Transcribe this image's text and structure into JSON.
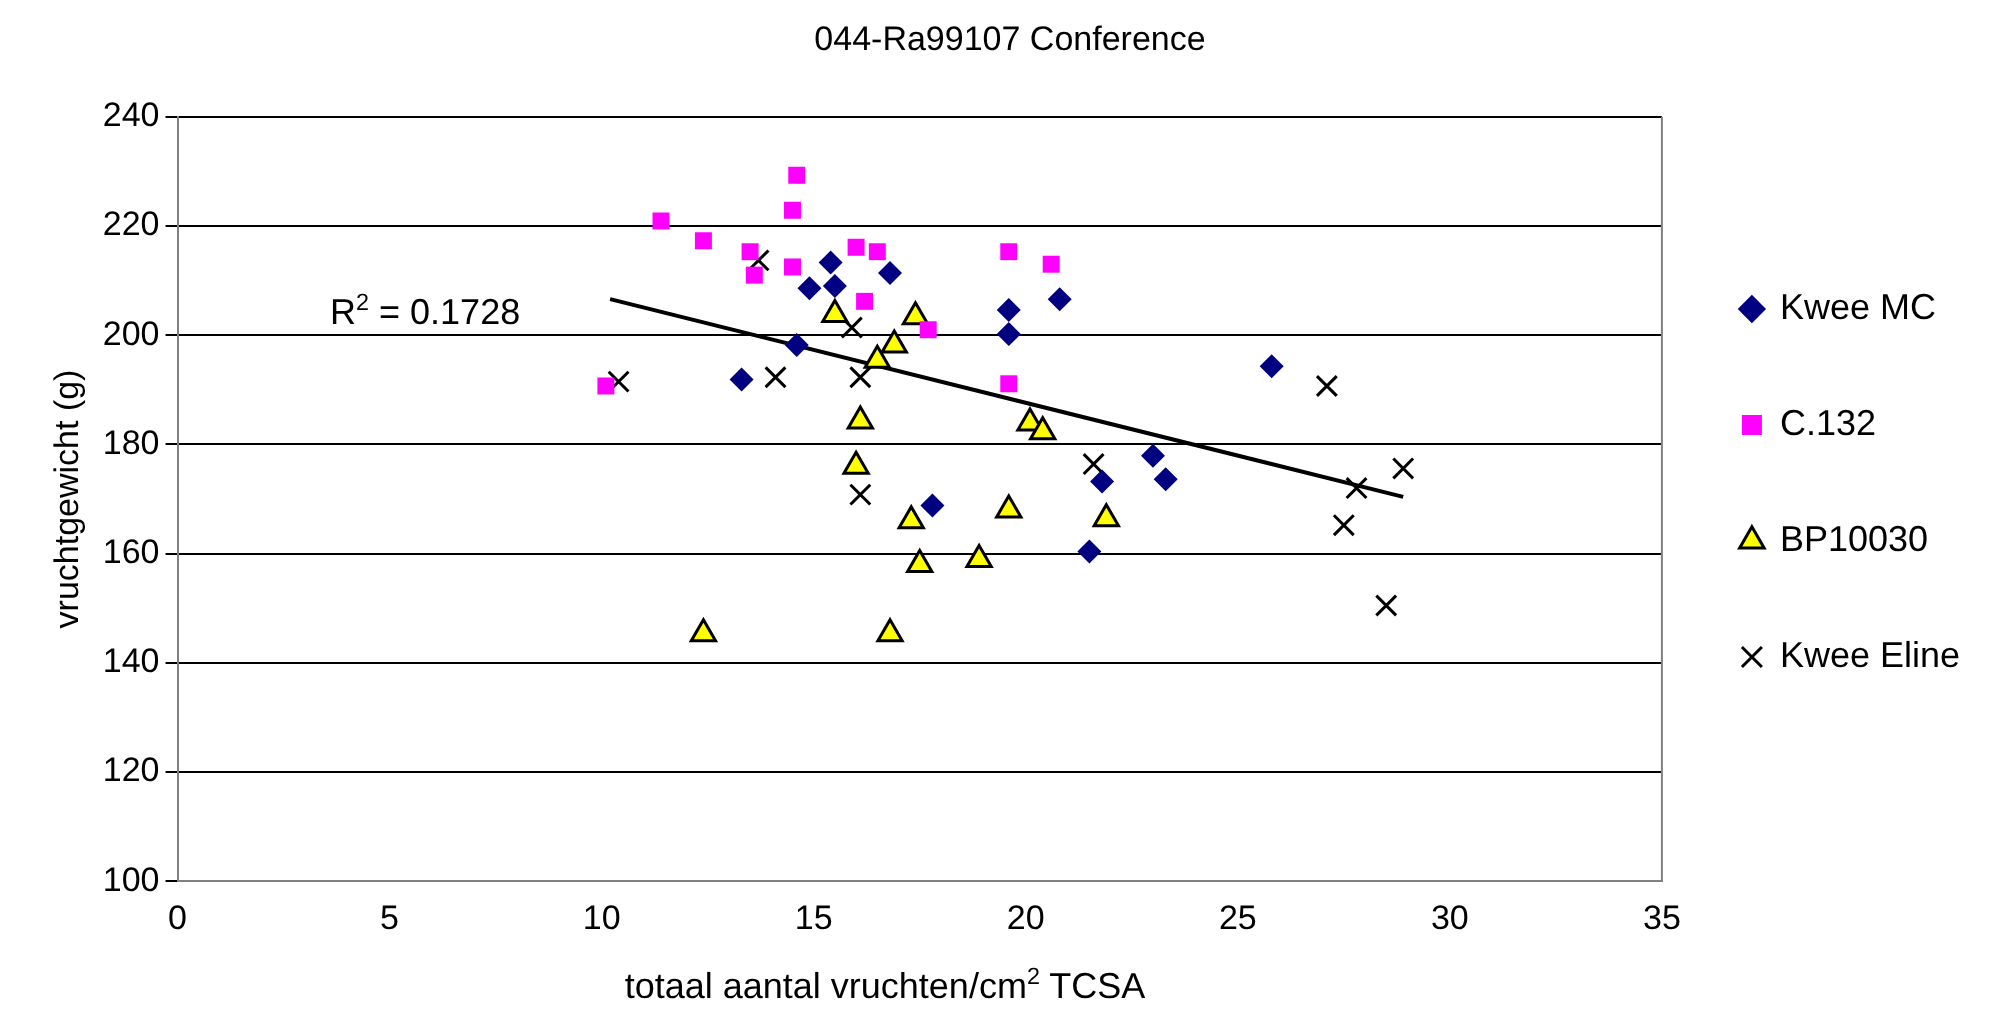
{
  "chart_data": {
    "type": "scatter",
    "title": "044-Ra99107 Conference",
    "xlabel": "totaal aantal vruchten/cm$^{2}$ TCSA",
    "ylabel": "vruchtgewicht (g)",
    "xlim": [
      0,
      35
    ],
    "xticks": [
      0,
      5,
      10,
      15,
      20,
      25,
      30,
      35
    ],
    "ylim": [
      100,
      240
    ],
    "yticks": [
      100,
      120,
      140,
      160,
      180,
      200,
      220,
      240
    ],
    "grid": "y",
    "legend": "right",
    "annotations": [
      "R$^{2}$ = 0.1728"
    ],
    "series": [
      {
        "name": "Kwee MC",
        "color": "#000080",
        "marker": "diamond",
        "x": [
          13.3,
          14.6,
          14.9,
          15.4,
          15.5,
          16.8,
          19.6,
          19.6,
          20.8,
          17.8,
          21.8,
          21.5,
          23.0,
          23.3,
          25.8
        ],
        "values": [
          191.9,
          198.2,
          208.6,
          213.3,
          209,
          211.4,
          204.6,
          200.2,
          206.6,
          168.8,
          173.2,
          160.4,
          177.9,
          173.6,
          194.3
        ]
      },
      {
        "name": "C.132",
        "color": "#ff00ff",
        "marker": "square",
        "x": [
          14.6,
          14.5,
          11.4,
          12.4,
          13.5,
          13.6,
          14.5,
          16.0,
          16.5,
          16.2,
          17.7,
          19.6,
          20.6,
          19.6,
          10.1
        ],
        "values": [
          229.3,
          222.9,
          220.9,
          217.3,
          215.3,
          211,
          212.5,
          216.1,
          215.3,
          206.2,
          201,
          215.3,
          213,
          191.1,
          190.7
        ]
      },
      {
        "name": "BP10030",
        "color": "#ffff00",
        "marker": "triangle",
        "x": [
          15.5,
          17.4,
          16.9,
          16.5,
          16.1,
          20.1,
          20.4,
          16.0,
          17.3,
          17.5,
          18.9,
          19.6,
          21.9,
          12.4,
          16.8
        ],
        "values": [
          203.8,
          203.4,
          198.2,
          195.4,
          184.3,
          183.9,
          182.3,
          176,
          166,
          158,
          158.9,
          168,
          166.4,
          145.3,
          145.3
        ]
      },
      {
        "name": "Kwee Eline",
        "color": "#000000",
        "marker": "cross",
        "x": [
          13.7,
          10.4,
          14.1,
          16.1,
          15.9,
          16.1,
          21.6,
          27.1,
          28.9,
          27.8,
          27.5,
          28.5
        ],
        "values": [
          213.7,
          191.5,
          192.3,
          192.3,
          201.4,
          170.8,
          176.4,
          190.7,
          175.6,
          172,
          165.2,
          150.5
        ]
      },
      {
        "type": "line",
        "color": "#000000",
        "marker": "none",
        "x": [
          10.2,
          28.9
        ],
        "values": [
          206.6,
          170.4
        ]
      }
    ]
  }
}
